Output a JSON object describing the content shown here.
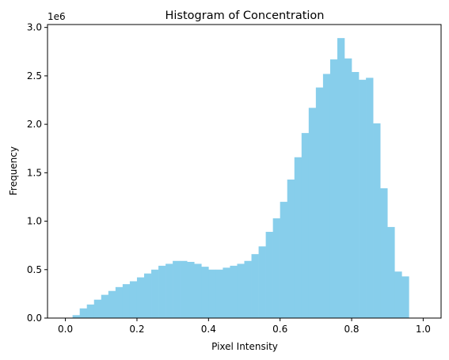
{
  "chart_data": {
    "type": "bar",
    "title": "Histogram of Concentration",
    "xlabel": "Pixel Intensity",
    "ylabel": "Frequency",
    "offset_text": "1e6",
    "bin_range": [
      0.0,
      1.0
    ],
    "bin_count": 50,
    "values": [
      0,
      0.03,
      0.1,
      0.14,
      0.19,
      0.24,
      0.28,
      0.32,
      0.35,
      0.38,
      0.42,
      0.46,
      0.5,
      0.54,
      0.56,
      0.59,
      0.59,
      0.58,
      0.56,
      0.53,
      0.5,
      0.5,
      0.52,
      0.54,
      0.56,
      0.59,
      0.66,
      0.74,
      0.89,
      1.03,
      1.2,
      1.43,
      1.66,
      1.91,
      2.17,
      2.38,
      2.52,
      2.67,
      2.89,
      2.68,
      2.54,
      2.46,
      2.48,
      2.01,
      1.34,
      0.94,
      0.48,
      0.43,
      0,
      0
    ],
    "xlim": [
      -0.05,
      1.05
    ],
    "ylim": [
      0,
      3.03
    ],
    "x_ticks": [
      0.0,
      0.2,
      0.4,
      0.6,
      0.8,
      1.0
    ],
    "x_tick_labels": [
      "0.0",
      "0.2",
      "0.4",
      "0.6",
      "0.8",
      "1.0"
    ],
    "y_ticks": [
      0.0,
      0.5,
      1.0,
      1.5,
      2.0,
      2.5,
      3.0
    ],
    "y_tick_labels": [
      "0.0",
      "0.5",
      "1.0",
      "1.5",
      "2.0",
      "2.5",
      "3.0"
    ],
    "bar_color": "#87ceeb",
    "grid": false
  }
}
